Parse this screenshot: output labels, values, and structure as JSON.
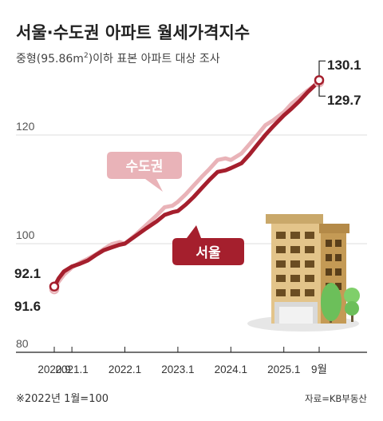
{
  "header": {
    "title": "서울·수도권 아파트 월세가격지수",
    "subtitle_pre": "중형(95.86m",
    "subtitle_sup": "2",
    "subtitle_post": ")이하 표본 아파트 대상 조사"
  },
  "colors": {
    "seoul": "#a51f2d",
    "capital": "#e9b3b8",
    "grid": "#dddddd",
    "text": "#222222"
  },
  "chart_data": {
    "type": "line",
    "title": "서울·수도권 아파트 월세가격지수",
    "ylim": [
      80,
      133
    ],
    "yticks": [
      80,
      100,
      120
    ],
    "ytick_labels": [
      "80",
      "100",
      "120"
    ],
    "xlim": [
      2020.667,
      2025.75
    ],
    "xticks": [
      2020.667,
      2021.0,
      2022.0,
      2023.0,
      2024.0,
      2025.0,
      2025.667
    ],
    "xtick_labels": [
      "2020.9",
      "2021.1",
      "2022.1",
      "2023.1",
      "2024.1",
      "2025.1",
      "9월"
    ],
    "series": [
      {
        "name": "수도권",
        "x": [
          2020.667,
          2020.75,
          2020.85,
          2021.0,
          2021.15,
          2021.3,
          2021.45,
          2021.6,
          2021.75,
          2021.9,
          2022.0,
          2022.2,
          2022.4,
          2022.6,
          2022.75,
          2022.9,
          2023.0,
          2023.15,
          2023.3,
          2023.45,
          2023.6,
          2023.75,
          2023.9,
          2024.0,
          2024.2,
          2024.35,
          2024.5,
          2024.65,
          2024.8,
          2025.0,
          2025.15,
          2025.3,
          2025.45,
          2025.6,
          2025.667
        ],
        "values": [
          91.6,
          93.0,
          94.3,
          95.6,
          96.5,
          97.2,
          98.0,
          99.0,
          99.9,
          100.3,
          100.0,
          101.6,
          103.4,
          105.2,
          106.7,
          107.0,
          107.7,
          109.1,
          110.7,
          112.3,
          113.8,
          115.4,
          115.7,
          115.4,
          116.6,
          118.3,
          120.0,
          121.8,
          122.7,
          124.2,
          125.8,
          127.0,
          128.2,
          129.3,
          129.7
        ]
      },
      {
        "name": "서울",
        "x": [
          2020.667,
          2020.75,
          2020.85,
          2021.0,
          2021.15,
          2021.3,
          2021.45,
          2021.6,
          2021.75,
          2021.9,
          2022.0,
          2022.2,
          2022.4,
          2022.6,
          2022.75,
          2022.9,
          2023.0,
          2023.15,
          2023.3,
          2023.45,
          2023.6,
          2023.75,
          2023.9,
          2024.0,
          2024.2,
          2024.35,
          2024.5,
          2024.65,
          2024.8,
          2025.0,
          2025.15,
          2025.3,
          2025.45,
          2025.6,
          2025.667
        ],
        "values": [
          92.1,
          93.6,
          94.9,
          95.8,
          96.3,
          96.9,
          97.9,
          98.8,
          99.3,
          99.8,
          100.0,
          101.4,
          102.8,
          104.1,
          105.3,
          105.8,
          106.0,
          107.2,
          108.6,
          110.2,
          111.8,
          113.2,
          113.5,
          113.9,
          114.8,
          116.4,
          118.2,
          120.0,
          121.6,
          123.6,
          124.9,
          126.3,
          127.9,
          129.3,
          130.1
        ]
      }
    ],
    "annotations": {
      "seoul_start": "92.1",
      "capital_start": "91.6",
      "seoul_end": "130.1",
      "capital_end": "129.7"
    }
  },
  "labels": {
    "capital_badge": "수도권",
    "seoul_badge": "서울"
  },
  "footer": {
    "footnote": "※2022년 1월=100",
    "source": "자료=KB부동산"
  }
}
